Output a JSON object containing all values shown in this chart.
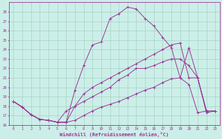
{
  "xlabel": "Windchill (Refroidissement éolien,°C)",
  "bg_color": "#cceee8",
  "line_color": "#993399",
  "grid_color": "#99ccbb",
  "xlim": [
    -0.5,
    23.5
  ],
  "ylim": [
    16.0,
    29.0
  ],
  "yticks": [
    16,
    17,
    18,
    19,
    20,
    21,
    22,
    23,
    24,
    25,
    26,
    27,
    28
  ],
  "xticks": [
    0,
    1,
    2,
    3,
    4,
    5,
    6,
    7,
    8,
    9,
    10,
    11,
    12,
    13,
    14,
    15,
    16,
    17,
    18,
    19,
    20,
    21,
    22,
    23
  ],
  "lines": [
    [
      18.5,
      17.9,
      17.1,
      16.6,
      16.5,
      16.3,
      16.3,
      16.5,
      17.0,
      17.5,
      17.9,
      18.2,
      18.5,
      18.9,
      19.3,
      19.7,
      20.0,
      20.5,
      20.9,
      21.0,
      20.3,
      17.3,
      17.5,
      17.5
    ],
    [
      18.5,
      17.9,
      17.1,
      16.6,
      16.5,
      16.3,
      17.5,
      18.0,
      18.5,
      19.0,
      19.5,
      20.0,
      20.8,
      21.3,
      22.0,
      22.0,
      22.3,
      22.7,
      23.0,
      23.0,
      22.3,
      21.0,
      17.5,
      17.5
    ],
    [
      18.5,
      17.9,
      17.1,
      16.6,
      16.5,
      16.3,
      16.3,
      18.0,
      19.3,
      20.0,
      20.5,
      21.0,
      21.5,
      22.0,
      22.5,
      23.0,
      23.5,
      24.0,
      24.5,
      24.7,
      21.0,
      21.0,
      17.5,
      17.5
    ],
    [
      18.5,
      17.9,
      17.1,
      16.6,
      16.5,
      16.3,
      16.3,
      19.7,
      22.3,
      24.5,
      24.8,
      27.3,
      27.8,
      28.5,
      28.3,
      27.3,
      26.5,
      25.3,
      24.2,
      21.0,
      24.2,
      21.0,
      17.3,
      17.5
    ]
  ]
}
